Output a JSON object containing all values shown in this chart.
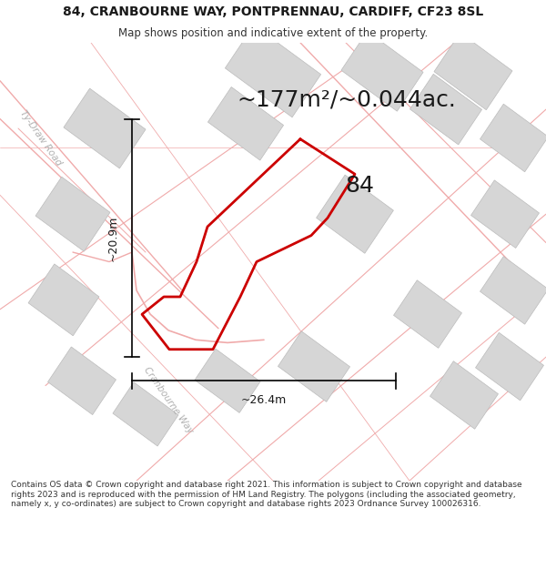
{
  "title_line1": "84, CRANBOURNE WAY, PONTPRENNAU, CARDIFF, CF23 8SL",
  "title_line2": "Map shows position and indicative extent of the property.",
  "area_text": "~177m²/~0.044ac.",
  "label_84": "84",
  "dim_height": "~20.9m",
  "dim_width": "~26.4m",
  "footer": "Contains OS data © Crown copyright and database right 2021. This information is subject to Crown copyright and database rights 2023 and is reproduced with the permission of HM Land Registry. The polygons (including the associated geometry, namely x, y co-ordinates) are subject to Crown copyright and database rights 2023 Ordnance Survey 100026316.",
  "map_bg": "#f2f0f0",
  "building_fill": "#d6d6d6",
  "building_edge": "#bbbbbb",
  "road_line_color": "#f0aaaa",
  "road_line_lw": 0.8,
  "property_color": "#cc0000",
  "property_lw": 2.0,
  "road_label_color": "#b0b0b0",
  "title_fontsize": 10,
  "subtitle_fontsize": 8.5,
  "area_fontsize": 18,
  "dim_fontsize": 9,
  "label84_fontsize": 18,
  "footer_fontsize": 6.5
}
